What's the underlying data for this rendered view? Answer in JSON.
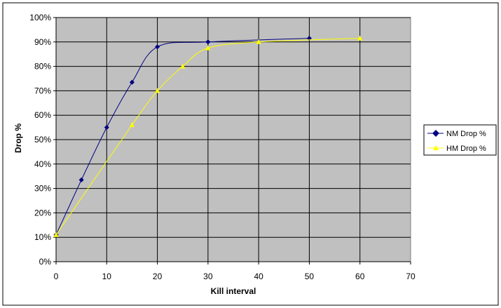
{
  "chart_data": {
    "type": "line",
    "title": "",
    "xlabel": "Kill interval",
    "ylabel": "Drop %",
    "xlim": [
      0,
      70
    ],
    "ylim": [
      0,
      100
    ],
    "x_ticks": [
      0,
      10,
      20,
      30,
      40,
      50,
      60,
      70
    ],
    "y_ticks": [
      0,
      10,
      20,
      30,
      40,
      50,
      60,
      70,
      80,
      90,
      100
    ],
    "x_tick_labels": [
      "0",
      "10",
      "20",
      "30",
      "40",
      "50",
      "60",
      "70"
    ],
    "y_tick_labels": [
      "0%",
      "10%",
      "20%",
      "30%",
      "40%",
      "50%",
      "60%",
      "70%",
      "80%",
      "90%",
      "100%"
    ],
    "grid": true,
    "legend_position": "right",
    "plot_background": "#c0c0c0",
    "series": [
      {
        "name": "NM Drop %",
        "color": "#000080",
        "marker": "diamond",
        "x": [
          0,
          5,
          10,
          15,
          20,
          30,
          50
        ],
        "y": [
          11,
          33.5,
          55,
          73.5,
          88,
          90,
          91.5
        ]
      },
      {
        "name": "HM Drop %",
        "color": "#ffff00",
        "marker": "triangle",
        "x": [
          0,
          15,
          20,
          25,
          30,
          40,
          60
        ],
        "y": [
          11,
          56,
          70,
          80,
          87.5,
          90,
          91.5
        ]
      }
    ]
  }
}
